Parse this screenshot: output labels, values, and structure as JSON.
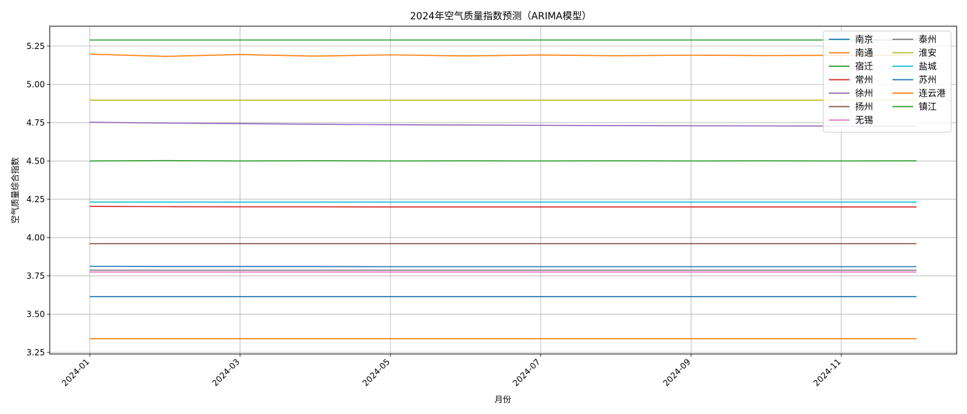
{
  "chart_data": {
    "type": "line",
    "title": "2024年空气质量指数预测（ARIMA模型）",
    "xlabel": "月份",
    "ylabel": "空气质量综合指数",
    "x": [
      "2024-01",
      "2024-02",
      "2024-03",
      "2024-04",
      "2024-05",
      "2024-06",
      "2024-07",
      "2024-08",
      "2024-09",
      "2024-10",
      "2024-11",
      "2024-12"
    ],
    "x_tick_labels": [
      "2024-01",
      "2024-03",
      "2024-05",
      "2024-07",
      "2024-09",
      "2024-11"
    ],
    "y_tick_labels": [
      "3.25",
      "3.50",
      "3.75",
      "4.00",
      "4.25",
      "4.50",
      "4.75",
      "5.00",
      "5.25"
    ],
    "ylim": [
      3.24,
      5.38
    ],
    "grid": true,
    "legend_placement": "top-right",
    "legend_columns": 2,
    "series": [
      {
        "name": "南京",
        "color": "#1f77b4",
        "values": [
          3.615,
          3.615,
          3.615,
          3.615,
          3.615,
          3.615,
          3.615,
          3.615,
          3.615,
          3.615,
          3.615,
          3.615
        ]
      },
      {
        "name": "南通",
        "color": "#ff7f0e",
        "values": [
          5.198,
          5.183,
          5.195,
          5.185,
          5.193,
          5.186,
          5.192,
          5.187,
          5.191,
          5.188,
          5.19,
          5.189
        ]
      },
      {
        "name": "宿迁",
        "color": "#2ca02c",
        "values": [
          4.5,
          4.503,
          4.5,
          4.502,
          4.5,
          4.501,
          4.5,
          4.501,
          4.5,
          4.501,
          4.5,
          4.501
        ]
      },
      {
        "name": "常州",
        "color": "#d62728",
        "values": [
          4.203,
          4.202,
          4.201,
          4.201,
          4.2,
          4.2,
          4.2,
          4.2,
          4.2,
          4.2,
          4.2,
          4.2
        ]
      },
      {
        "name": "徐州",
        "color": "#9467bd",
        "values": [
          4.753,
          4.748,
          4.744,
          4.74,
          4.737,
          4.735,
          4.733,
          4.731,
          4.73,
          4.729,
          4.728,
          4.727
        ]
      },
      {
        "name": "扬州",
        "color": "#8c564b",
        "values": [
          3.96,
          3.96,
          3.96,
          3.96,
          3.96,
          3.96,
          3.96,
          3.96,
          3.96,
          3.96,
          3.96,
          3.96
        ]
      },
      {
        "name": "无锡",
        "color": "#e377c2",
        "values": [
          3.775,
          3.775,
          3.775,
          3.775,
          3.775,
          3.775,
          3.775,
          3.775,
          3.775,
          3.775,
          3.775,
          3.775
        ]
      },
      {
        "name": "泰州",
        "color": "#7f7f7f",
        "values": [
          3.787,
          3.787,
          3.787,
          3.787,
          3.787,
          3.787,
          3.787,
          3.787,
          3.787,
          3.787,
          3.787,
          3.787
        ]
      },
      {
        "name": "淮安",
        "color": "#bcbd22",
        "values": [
          4.897,
          4.897,
          4.897,
          4.897,
          4.897,
          4.897,
          4.897,
          4.897,
          4.897,
          4.897,
          4.897,
          4.897
        ]
      },
      {
        "name": "盐城",
        "color": "#17becf",
        "values": [
          4.232,
          4.232,
          4.232,
          4.232,
          4.232,
          4.232,
          4.232,
          4.232,
          4.232,
          4.232,
          4.232,
          4.232
        ]
      },
      {
        "name": "苏州",
        "color": "#1f77b4",
        "values": [
          3.812,
          3.811,
          3.811,
          3.811,
          3.81,
          3.81,
          3.81,
          3.81,
          3.81,
          3.81,
          3.81,
          3.81
        ]
      },
      {
        "name": "连云港",
        "color": "#ff7f0e",
        "values": [
          3.34,
          3.34,
          3.34,
          3.34,
          3.34,
          3.34,
          3.34,
          3.34,
          3.34,
          3.34,
          3.34,
          3.34
        ]
      },
      {
        "name": "镇江",
        "color": "#2ca02c",
        "values": [
          5.29,
          5.29,
          5.29,
          5.29,
          5.29,
          5.29,
          5.29,
          5.29,
          5.29,
          5.29,
          5.29,
          5.29
        ]
      }
    ]
  }
}
